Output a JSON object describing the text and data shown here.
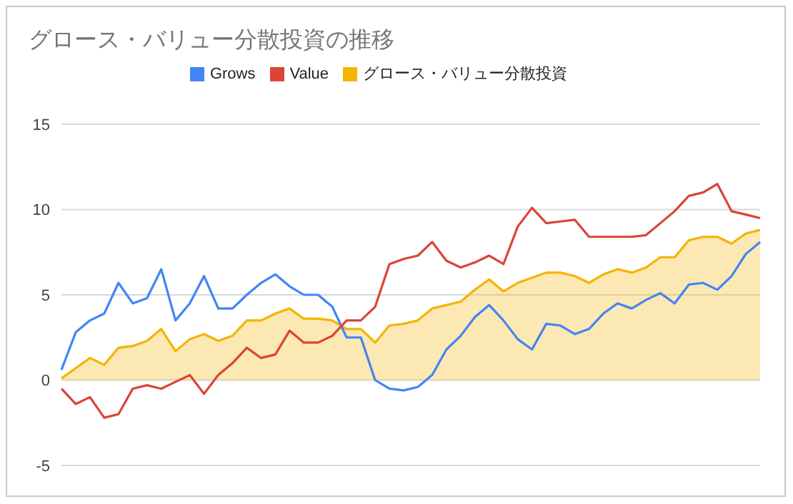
{
  "chart_data": {
    "type": "line",
    "title": "グロース・バリュー分散投資の推移",
    "categories": [
      null,
      null,
      null,
      null,
      null,
      null,
      null,
      null,
      null,
      null,
      null,
      null,
      null,
      null,
      null,
      null,
      null,
      null,
      null,
      null,
      null,
      null,
      null,
      null,
      null,
      null,
      null,
      null,
      null,
      null,
      null,
      null,
      null,
      null,
      null,
      null,
      null,
      null,
      null,
      null,
      null,
      null,
      null,
      null,
      null,
      null,
      null,
      null,
      null,
      null
    ],
    "series": [
      {
        "name": "Grows",
        "color": "#4285f4",
        "values": [
          0.6,
          2.8,
          3.5,
          3.9,
          5.7,
          4.5,
          4.8,
          6.5,
          3.5,
          4.5,
          6.1,
          4.2,
          4.2,
          5.0,
          5.7,
          6.2,
          5.5,
          5.0,
          5.0,
          4.3,
          2.5,
          2.5,
          0.0,
          -0.5,
          -0.6,
          -0.4,
          0.3,
          1.8,
          2.6,
          3.7,
          4.4,
          3.5,
          2.4,
          1.8,
          3.3,
          3.2,
          2.7,
          3.0,
          3.9,
          4.5,
          4.2,
          4.7,
          5.1,
          4.5,
          5.6,
          5.7,
          5.3,
          6.1,
          7.4,
          8.1
        ]
      },
      {
        "name": "Value",
        "color": "#db4437",
        "values": [
          -0.5,
          -1.4,
          -1.0,
          -2.2,
          -2.0,
          -0.5,
          -0.3,
          -0.5,
          -0.1,
          0.3,
          -0.8,
          0.3,
          1.0,
          1.9,
          1.3,
          1.5,
          2.9,
          2.2,
          2.2,
          2.6,
          3.5,
          3.5,
          4.3,
          6.8,
          7.1,
          7.3,
          8.1,
          7.0,
          6.6,
          6.9,
          7.3,
          6.8,
          9.0,
          10.1,
          9.2,
          9.3,
          9.4,
          8.4,
          8.4,
          8.4,
          8.4,
          8.5,
          9.2,
          9.9,
          10.8,
          11.0,
          11.5,
          9.9,
          9.7,
          9.5
        ]
      },
      {
        "name": "グロース・バリュー分散投資",
        "type": "area",
        "color": "#f4b400",
        "values": [
          0.1,
          0.7,
          1.3,
          0.9,
          1.9,
          2.0,
          2.3,
          3.0,
          1.7,
          2.4,
          2.7,
          2.3,
          2.6,
          3.5,
          3.5,
          3.9,
          4.2,
          3.6,
          3.6,
          3.5,
          3.0,
          3.0,
          2.2,
          3.2,
          3.3,
          3.5,
          4.2,
          4.4,
          4.6,
          5.3,
          5.9,
          5.2,
          5.7,
          6.0,
          6.3,
          6.3,
          6.1,
          5.7,
          6.2,
          6.5,
          6.3,
          6.6,
          7.2,
          7.2,
          8.2,
          8.4,
          8.4,
          8.0,
          8.6,
          8.8
        ]
      }
    ],
    "ylim": [
      -5,
      15
    ],
    "yticks": [
      -5,
      0,
      5,
      10,
      15
    ],
    "grid": "y",
    "legend": "top",
    "tick_labels": "y",
    "marker": "none",
    "line_style": "solid"
  }
}
